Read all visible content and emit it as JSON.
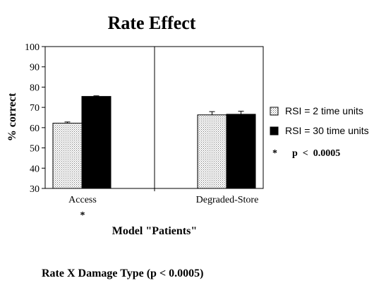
{
  "chart_data": {
    "type": "bar",
    "title": "Rate Effect",
    "xlabel": "Model \"Patients\"",
    "ylabel": "% correct",
    "ylim": [
      30,
      100
    ],
    "yticks": [
      30,
      40,
      50,
      60,
      70,
      80,
      90,
      100
    ],
    "grid": false,
    "categories": [
      "Access",
      "Degraded-Store"
    ],
    "category_marks": [
      "*",
      ""
    ],
    "series": [
      {
        "name": "RSI = 2 time units",
        "values": [
          62.2,
          66.3
        ],
        "errors": [
          0.6,
          1.6
        ],
        "fill": "dotted",
        "color": "#ffffff"
      },
      {
        "name": "RSI = 30 time units",
        "values": [
          75.4,
          66.6
        ],
        "errors": [
          0.3,
          1.5
        ],
        "fill": "solid",
        "color": "#000000"
      }
    ],
    "legend": {
      "placement": "right",
      "note_symbol": "*",
      "note_text": "p  <  0.0005"
    },
    "footnote": "Rate X Damage Type (p < 0.0005)"
  }
}
